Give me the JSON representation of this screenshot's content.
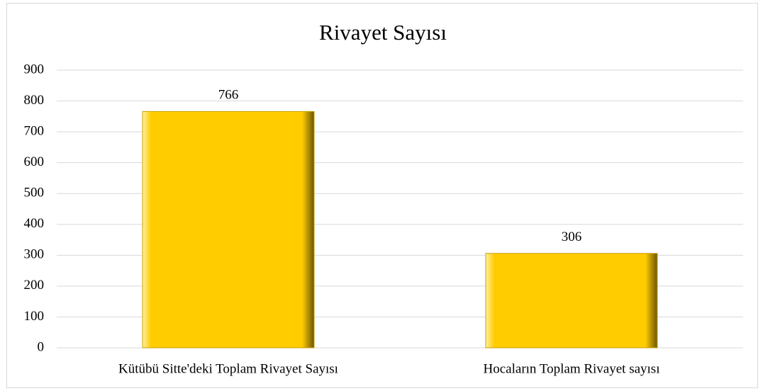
{
  "chart_data": {
    "type": "bar",
    "title": "Rivayet Sayısı",
    "categories": [
      "Kütübü Sitte'deki Toplam Rivayet Sayısı",
      "Hocaların Toplam Rivayet sayısı"
    ],
    "values": [
      766,
      306
    ],
    "color": "#FFCC00",
    "ylim": [
      0,
      900
    ],
    "yticks": [
      0,
      100,
      200,
      300,
      400,
      500,
      600,
      700,
      800,
      900
    ],
    "grid": true
  }
}
